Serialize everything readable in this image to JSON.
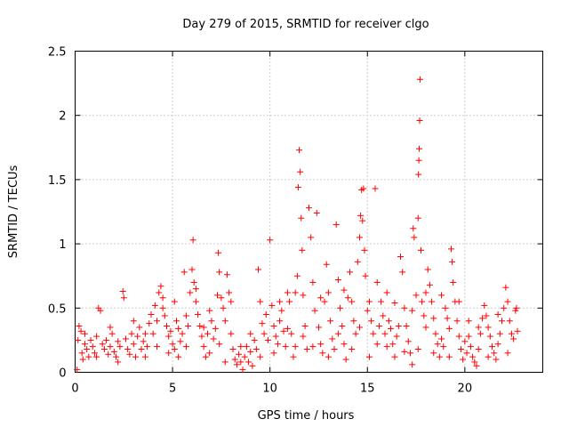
{
  "chart_data": {
    "type": "scatter",
    "title": "Day 279 of 2015, SRMTID for receiver clgo",
    "xlabel": "GPS time / hours",
    "ylabel": "SRMTID / TECUs",
    "xlim": [
      0,
      24
    ],
    "ylim": [
      0,
      2.5
    ],
    "xticks": [
      0,
      5,
      10,
      15,
      20
    ],
    "yticks": [
      0,
      0.5,
      1,
      1.5,
      2,
      2.5
    ],
    "ytick_labels": [
      "0",
      "0.5",
      "1",
      "1.5",
      "2",
      "2.5"
    ],
    "grid": true,
    "marker": "+",
    "color": "#ff0000",
    "series": [
      {
        "name": "SRMTID",
        "points": [
          [
            0.1,
            0.02
          ],
          [
            0.15,
            0.25
          ],
          [
            0.2,
            0.36
          ],
          [
            0.3,
            0.32
          ],
          [
            0.35,
            0.15
          ],
          [
            0.4,
            0.1
          ],
          [
            0.5,
            0.22
          ],
          [
            0.6,
            0.18
          ],
          [
            0.7,
            0.12
          ],
          [
            0.8,
            0.25
          ],
          [
            0.9,
            0.2
          ],
          [
            1.0,
            0.15
          ],
          [
            1.1,
            0.28
          ],
          [
            1.2,
            0.5
          ],
          [
            1.3,
            0.48
          ],
          [
            1.4,
            0.22
          ],
          [
            1.5,
            0.18
          ],
          [
            1.6,
            0.25
          ],
          [
            1.7,
            0.14
          ],
          [
            1.8,
            0.2
          ],
          [
            1.9,
            0.3
          ],
          [
            2.0,
            0.16
          ],
          [
            2.1,
            0.12
          ],
          [
            2.2,
            0.24
          ],
          [
            2.3,
            0.2
          ],
          [
            2.45,
            0.63
          ],
          [
            2.5,
            0.58
          ],
          [
            2.6,
            0.26
          ],
          [
            2.7,
            0.18
          ],
          [
            2.8,
            0.14
          ],
          [
            2.9,
            0.3
          ],
          [
            3.0,
            0.22
          ],
          [
            3.1,
            0.12
          ],
          [
            3.2,
            0.28
          ],
          [
            3.3,
            0.35
          ],
          [
            3.4,
            0.18
          ],
          [
            3.5,
            0.24
          ],
          [
            3.6,
            0.3
          ],
          [
            3.7,
            0.2
          ],
          [
            3.8,
            0.38
          ],
          [
            3.9,
            0.45
          ],
          [
            4.0,
            0.3
          ],
          [
            4.1,
            0.52
          ],
          [
            4.2,
            0.4
          ],
          [
            4.3,
            0.62
          ],
          [
            4.4,
            0.67
          ],
          [
            4.5,
            0.5
          ],
          [
            4.6,
            0.44
          ],
          [
            4.7,
            0.36
          ],
          [
            4.8,
            0.28
          ],
          [
            4.9,
            0.32
          ],
          [
            5.0,
            0.22
          ],
          [
            5.1,
            0.18
          ],
          [
            5.2,
            0.4
          ],
          [
            5.3,
            0.34
          ],
          [
            5.4,
            0.24
          ],
          [
            5.5,
            0.3
          ],
          [
            5.6,
            0.78
          ],
          [
            5.7,
            0.44
          ],
          [
            5.8,
            0.36
          ],
          [
            5.9,
            0.62
          ],
          [
            6.0,
            0.8
          ],
          [
            6.05,
            1.03
          ],
          [
            6.1,
            0.7
          ],
          [
            6.2,
            0.55
          ],
          [
            6.3,
            0.45
          ],
          [
            6.4,
            0.36
          ],
          [
            6.5,
            0.28
          ],
          [
            6.6,
            0.2
          ],
          [
            6.7,
            0.12
          ],
          [
            6.8,
            0.3
          ],
          [
            6.9,
            0.48
          ],
          [
            7.0,
            0.4
          ],
          [
            7.1,
            0.26
          ],
          [
            7.2,
            0.34
          ],
          [
            7.3,
            0.6
          ],
          [
            7.35,
            0.93
          ],
          [
            7.4,
            0.78
          ],
          [
            7.5,
            0.58
          ],
          [
            7.6,
            0.5
          ],
          [
            7.7,
            0.4
          ],
          [
            7.8,
            0.76
          ],
          [
            7.9,
            0.62
          ],
          [
            8.0,
            0.3
          ],
          [
            8.1,
            0.18
          ],
          [
            8.2,
            0.1
          ],
          [
            8.3,
            0.06
          ],
          [
            8.4,
            0.14
          ],
          [
            8.5,
            0.08
          ],
          [
            8.6,
            0.02
          ],
          [
            8.7,
            0.12
          ],
          [
            8.8,
            0.2
          ],
          [
            8.9,
            0.08
          ],
          [
            9.0,
            0.16
          ],
          [
            9.1,
            0.05
          ],
          [
            9.2,
            0.25
          ],
          [
            9.3,
            0.18
          ],
          [
            9.4,
            0.8
          ],
          [
            9.5,
            0.55
          ],
          [
            9.6,
            0.38
          ],
          [
            9.7,
            0.3
          ],
          [
            9.8,
            0.45
          ],
          [
            9.9,
            0.25
          ],
          [
            10.0,
            1.03
          ],
          [
            10.1,
            0.52
          ],
          [
            10.2,
            0.36
          ],
          [
            10.3,
            0.28
          ],
          [
            10.4,
            0.22
          ],
          [
            10.5,
            0.4
          ],
          [
            10.6,
            0.48
          ],
          [
            10.7,
            0.32
          ],
          [
            10.8,
            0.2
          ],
          [
            10.9,
            0.34
          ],
          [
            11.0,
            0.55
          ],
          [
            11.1,
            0.3
          ],
          [
            11.2,
            0.12
          ],
          [
            11.3,
            0.62
          ],
          [
            11.4,
            0.75
          ],
          [
            11.45,
            1.44
          ],
          [
            11.5,
            1.73
          ],
          [
            11.55,
            1.56
          ],
          [
            11.6,
            1.2
          ],
          [
            11.65,
            0.95
          ],
          [
            11.7,
            0.6
          ],
          [
            11.8,
            0.36
          ],
          [
            11.9,
            0.18
          ],
          [
            12.0,
            1.28
          ],
          [
            12.1,
            1.05
          ],
          [
            12.2,
            0.7
          ],
          [
            12.3,
            0.48
          ],
          [
            12.4,
            1.24
          ],
          [
            12.5,
            0.35
          ],
          [
            12.6,
            0.22
          ],
          [
            12.7,
            0.15
          ],
          [
            12.8,
            0.55
          ],
          [
            12.9,
            0.84
          ],
          [
            13.0,
            0.62
          ],
          [
            13.1,
            0.4
          ],
          [
            13.2,
            0.26
          ],
          [
            13.3,
            0.18
          ],
          [
            13.4,
            1.15
          ],
          [
            13.5,
            0.72
          ],
          [
            13.6,
            0.5
          ],
          [
            13.7,
            0.36
          ],
          [
            13.8,
            0.22
          ],
          [
            13.9,
            0.1
          ],
          [
            14.0,
            0.58
          ],
          [
            14.1,
            0.78
          ],
          [
            14.2,
            0.55
          ],
          [
            14.3,
            0.4
          ],
          [
            14.4,
            0.3
          ],
          [
            14.5,
            0.86
          ],
          [
            14.6,
            1.05
          ],
          [
            14.65,
            1.22
          ],
          [
            14.7,
            1.42
          ],
          [
            14.75,
            1.18
          ],
          [
            14.8,
            1.43
          ],
          [
            14.85,
            0.95
          ],
          [
            14.9,
            0.75
          ],
          [
            15.0,
            0.48
          ],
          [
            15.1,
            0.55
          ],
          [
            15.2,
            0.4
          ],
          [
            15.3,
            0.3
          ],
          [
            15.4,
            1.43
          ],
          [
            15.5,
            0.22
          ],
          [
            15.6,
            0.36
          ],
          [
            15.7,
            0.55
          ],
          [
            15.8,
            0.44
          ],
          [
            15.9,
            0.3
          ],
          [
            16.0,
            0.2
          ],
          [
            16.1,
            0.4
          ],
          [
            16.2,
            0.34
          ],
          [
            16.3,
            0.22
          ],
          [
            16.4,
            0.12
          ],
          [
            16.5,
            0.28
          ],
          [
            16.6,
            0.36
          ],
          [
            16.7,
            0.9
          ],
          [
            16.8,
            0.78
          ],
          [
            16.9,
            0.5
          ],
          [
            17.0,
            0.36
          ],
          [
            17.1,
            0.24
          ],
          [
            17.2,
            0.15
          ],
          [
            17.3,
            0.06
          ],
          [
            17.35,
            1.12
          ],
          [
            17.4,
            1.05
          ],
          [
            17.5,
            0.6
          ],
          [
            17.6,
            1.2
          ],
          [
            17.62,
            1.54
          ],
          [
            17.64,
            1.65
          ],
          [
            17.66,
            1.74
          ],
          [
            17.68,
            1.96
          ],
          [
            17.7,
            2.28
          ],
          [
            17.75,
            0.95
          ],
          [
            17.8,
            0.55
          ],
          [
            17.9,
            0.44
          ],
          [
            18.0,
            0.35
          ],
          [
            18.1,
            0.8
          ],
          [
            18.2,
            0.68
          ],
          [
            18.3,
            0.55
          ],
          [
            18.4,
            0.42
          ],
          [
            18.5,
            0.3
          ],
          [
            18.6,
            0.22
          ],
          [
            18.7,
            0.12
          ],
          [
            18.8,
            0.26
          ],
          [
            18.9,
            0.2
          ],
          [
            19.0,
            0.5
          ],
          [
            19.1,
            0.42
          ],
          [
            19.2,
            0.34
          ],
          [
            19.3,
            0.96
          ],
          [
            19.35,
            0.86
          ],
          [
            19.4,
            0.7
          ],
          [
            19.5,
            0.55
          ],
          [
            19.6,
            0.4
          ],
          [
            19.7,
            0.28
          ],
          [
            19.8,
            0.18
          ],
          [
            19.9,
            0.1
          ],
          [
            20.0,
            0.24
          ],
          [
            20.1,
            0.15
          ],
          [
            20.2,
            0.28
          ],
          [
            20.3,
            0.2
          ],
          [
            20.4,
            0.12
          ],
          [
            20.5,
            0.08
          ],
          [
            20.6,
            0.05
          ],
          [
            20.7,
            0.18
          ],
          [
            20.8,
            0.3
          ],
          [
            20.9,
            0.42
          ],
          [
            21.0,
            0.52
          ],
          [
            21.1,
            0.44
          ],
          [
            21.2,
            0.35
          ],
          [
            21.3,
            0.28
          ],
          [
            21.4,
            0.2
          ],
          [
            21.5,
            0.15
          ],
          [
            21.6,
            0.1
          ],
          [
            21.7,
            0.22
          ],
          [
            21.8,
            0.3
          ],
          [
            21.9,
            0.4
          ],
          [
            22.0,
            0.5
          ],
          [
            22.1,
            0.66
          ],
          [
            22.2,
            0.55
          ],
          [
            22.3,
            0.4
          ],
          [
            22.4,
            0.3
          ],
          [
            22.5,
            0.26
          ],
          [
            22.6,
            0.48
          ],
          [
            22.65,
            0.5
          ],
          [
            22.7,
            0.32
          ],
          [
            0.5,
            0.3
          ],
          [
            1.1,
            0.12
          ],
          [
            1.8,
            0.35
          ],
          [
            2.2,
            0.08
          ],
          [
            3.0,
            0.4
          ],
          [
            3.6,
            0.12
          ],
          [
            4.2,
            0.2
          ],
          [
            4.5,
            0.58
          ],
          [
            4.8,
            0.15
          ],
          [
            5.1,
            0.55
          ],
          [
            5.3,
            0.12
          ],
          [
            5.7,
            0.2
          ],
          [
            6.2,
            0.65
          ],
          [
            6.6,
            0.35
          ],
          [
            6.9,
            0.15
          ],
          [
            7.4,
            0.22
          ],
          [
            7.7,
            0.08
          ],
          [
            8.0,
            0.55
          ],
          [
            8.5,
            0.2
          ],
          [
            9.0,
            0.3
          ],
          [
            9.5,
            0.12
          ],
          [
            10.2,
            0.15
          ],
          [
            10.5,
            0.55
          ],
          [
            10.9,
            0.62
          ],
          [
            11.3,
            0.2
          ],
          [
            11.7,
            0.28
          ],
          [
            12.2,
            0.2
          ],
          [
            12.6,
            0.58
          ],
          [
            13.0,
            0.12
          ],
          [
            13.5,
            0.3
          ],
          [
            13.8,
            0.64
          ],
          [
            14.2,
            0.18
          ],
          [
            14.6,
            0.35
          ],
          [
            15.1,
            0.12
          ],
          [
            15.5,
            0.7
          ],
          [
            16.0,
            0.62
          ],
          [
            16.4,
            0.54
          ],
          [
            16.9,
            0.16
          ],
          [
            17.3,
            0.48
          ],
          [
            17.6,
            0.18
          ],
          [
            18.0,
            0.62
          ],
          [
            18.4,
            0.15
          ],
          [
            18.8,
            0.6
          ],
          [
            19.2,
            0.12
          ],
          [
            19.7,
            0.55
          ],
          [
            20.2,
            0.4
          ],
          [
            20.7,
            0.35
          ],
          [
            21.2,
            0.12
          ],
          [
            21.7,
            0.45
          ],
          [
            22.2,
            0.15
          ]
        ]
      }
    ]
  }
}
